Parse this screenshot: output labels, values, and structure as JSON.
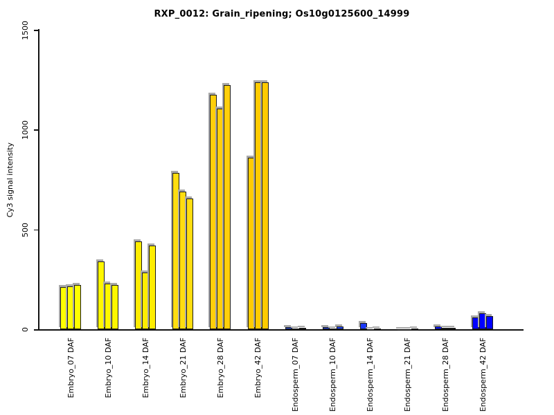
{
  "title": "RXP_0012: Grain_ripening; Os10g0125600_14999",
  "chart_data": {
    "type": "bar",
    "title": "RXP_0012: Grain_ripening; Os10g0125600_14999",
    "xlabel": "",
    "ylabel": "Cy3 signal intensity",
    "ylim": [
      0,
      1500
    ],
    "yticks": [
      0,
      500,
      1000,
      1500
    ],
    "grid": false,
    "legend_position": "none",
    "bars_per_category": 3,
    "categories": [
      "Embryo_07 DAF",
      "Embryo_10 DAF",
      "Embryo_14 DAF",
      "Embryo_21 DAF",
      "Embryo_28 DAF",
      "Embryo_42 DAF",
      "Endosperm_07 DAF",
      "Endosperm_10 DAF",
      "Endosperm_14 DAF",
      "Endosperm_21 DAF",
      "Endosperm_28 DAF",
      "Endosperm_42 DAF"
    ],
    "groups": [
      {
        "label": "Embryo_07 DAF",
        "bar_color": "#FFFF00",
        "values": [
          212,
          218,
          225
        ]
      },
      {
        "label": "Embryo_10 DAF",
        "bar_color": "#FFF700",
        "values": [
          342,
          232,
          225
        ]
      },
      {
        "label": "Embryo_14 DAF",
        "bar_color": "#FFED00",
        "values": [
          442,
          287,
          422
        ]
      },
      {
        "label": "Embryo_21 DAF",
        "bar_color": "#FFDD10",
        "values": [
          784,
          692,
          657
        ]
      },
      {
        "label": "Embryo_28 DAF",
        "bar_color": "#FFCF0A",
        "values": [
          1176,
          1107,
          1224
        ]
      },
      {
        "label": "Embryo_42 DAF",
        "bar_color": "#FFCB00",
        "values": [
          860,
          1237,
          1237
        ]
      },
      {
        "label": "Endosperm_07 DAF",
        "bar_color": "#2A52F0",
        "values": [
          12,
          4,
          10
        ]
      },
      {
        "label": "Endosperm_10 DAF",
        "bar_color": "#2247F5",
        "values": [
          12,
          5,
          16
        ]
      },
      {
        "label": "Endosperm_14 DAF",
        "bar_color": "#1A38F8",
        "values": [
          34,
          2,
          6
        ]
      },
      {
        "label": "Endosperm_21 DAF",
        "bar_color": "#1228FA",
        "values": [
          3,
          2,
          6
        ]
      },
      {
        "label": "Endosperm_28 DAF",
        "bar_color": "#0A14FC",
        "values": [
          14,
          9,
          9
        ]
      },
      {
        "label": "Endosperm_42 DAF",
        "bar_color": "#0000FF",
        "values": [
          60,
          81,
          69
        ]
      }
    ]
  },
  "colors": {
    "background": "#FFFFFF",
    "axis": "#111111",
    "text": "#000000",
    "bar_border": "#1A1A1A",
    "bar_shadow": "#A9A9A9"
  }
}
